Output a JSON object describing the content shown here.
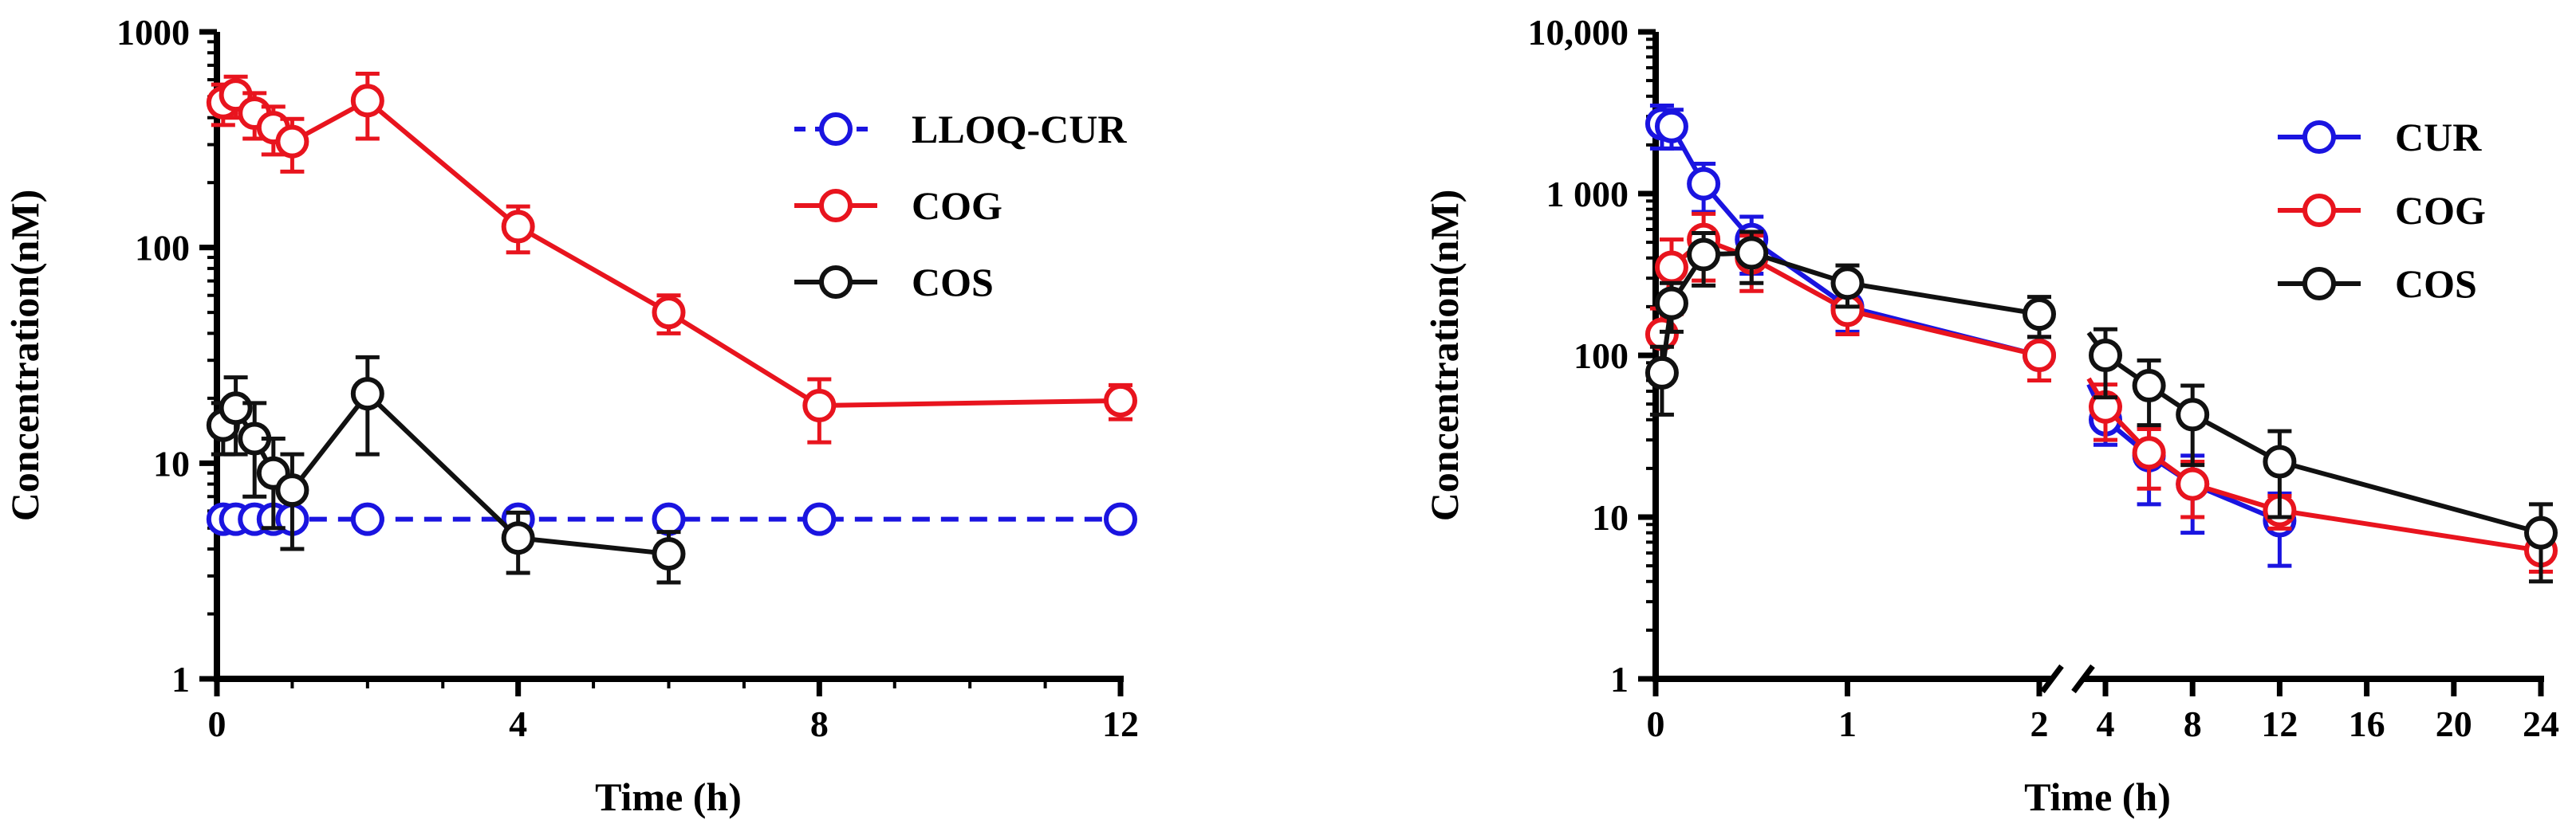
{
  "figure": {
    "description_free": true
  },
  "colors": {
    "red": "#e8141e",
    "blue": "#1a14e0",
    "black": "#111111"
  },
  "chart_data": [
    {
      "type": "line",
      "subtype": "log-scale line plot with error bars",
      "title": "",
      "xlabel": "Time  (h)",
      "ylabel": "Concentration(nM)",
      "xlim": [
        0,
        12
      ],
      "ylim": [
        1,
        1000
      ],
      "yscale": "log",
      "xticks": [
        0,
        4,
        8,
        12
      ],
      "xtick_labels": [
        "0",
        "4",
        "8",
        "12"
      ],
      "yticks": [
        1,
        10,
        100,
        1000
      ],
      "ytick_labels": [
        "1",
        "10",
        "100",
        "1000"
      ],
      "legend_position": "top-right",
      "series": [
        {
          "name": "LLOQ-CUR",
          "color": "blue",
          "dashed": true,
          "x": [
            0.083,
            0.25,
            0.5,
            0.75,
            1,
            2,
            4,
            6,
            8,
            12
          ],
          "y": [
            5.5,
            5.5,
            5.5,
            5.5,
            5.5,
            5.5,
            5.5,
            5.5,
            5.5,
            5.5
          ],
          "err": [
            0,
            0,
            0,
            0,
            0,
            0,
            0,
            0,
            0,
            0
          ]
        },
        {
          "name": "COG",
          "color": "red",
          "dashed": false,
          "x": [
            0.083,
            0.25,
            0.5,
            0.75,
            1,
            2,
            4,
            6,
            8,
            12
          ],
          "y": [
            470,
            510,
            420,
            360,
            310,
            480,
            125,
            50,
            18.5,
            19.5
          ],
          "err": [
            100,
            110,
            100,
            90,
            85,
            160,
            30,
            10,
            6,
            3.5
          ]
        },
        {
          "name": "COS",
          "color": "black",
          "dashed": false,
          "x": [
            0.083,
            0.25,
            0.5,
            0.75,
            1,
            2,
            4,
            6
          ],
          "y": [
            15,
            18,
            13,
            9,
            7.5,
            21,
            4.5,
            3.8
          ],
          "err": [
            4,
            7,
            6,
            4,
            3.5,
            10,
            1.4,
            1
          ]
        }
      ]
    },
    {
      "type": "line",
      "subtype": "log-scale line plot with error bars, broken x-axis",
      "title": "",
      "xlabel": "Time  (h)",
      "ylabel": "Concentration(nM)",
      "xlim_segment1": [
        0,
        2
      ],
      "xlim_segment2": [
        2,
        24
      ],
      "ylim": [
        1,
        10000
      ],
      "yscale": "log",
      "xticks": [
        0,
        1,
        2,
        4,
        8,
        12,
        16,
        20,
        24
      ],
      "xtick_labels": [
        "0",
        "1",
        "2",
        "4",
        "8",
        "12",
        "16",
        "20",
        "24"
      ],
      "yticks": [
        1,
        10,
        100,
        1000,
        10000
      ],
      "ytick_labels": [
        "1",
        "10",
        "100",
        "1 000",
        "10,000"
      ],
      "legend_position": "top-right",
      "series": [
        {
          "name": "CUR",
          "color": "blue",
          "x": [
            0.033,
            0.083,
            0.25,
            0.5,
            1,
            2,
            4,
            6,
            8,
            12
          ],
          "y": [
            2700,
            2600,
            1150,
            520,
            200,
            100,
            40,
            24,
            16,
            9.5
          ],
          "err": [
            800,
            700,
            380,
            200,
            60,
            30,
            12,
            12,
            8,
            4.5
          ]
        },
        {
          "name": "COG",
          "color": "red",
          "x": [
            0.033,
            0.083,
            0.25,
            0.5,
            1,
            2,
            4,
            6,
            8,
            12,
            24
          ],
          "y": [
            135,
            350,
            520,
            400,
            190,
            100,
            48,
            25,
            16,
            11,
            6.2
          ],
          "err": [
            60,
            170,
            230,
            150,
            55,
            30,
            18,
            10,
            6,
            2.5,
            1.6
          ]
        },
        {
          "name": "COS",
          "color": "black",
          "x": [
            0.033,
            0.083,
            0.25,
            0.5,
            1,
            2,
            4,
            6,
            8,
            12,
            24
          ],
          "y": [
            78,
            210,
            420,
            430,
            280,
            180,
            100,
            65,
            43,
            22,
            8
          ],
          "err": [
            35,
            70,
            150,
            150,
            80,
            50,
            45,
            28,
            22,
            12,
            4
          ]
        }
      ]
    }
  ]
}
